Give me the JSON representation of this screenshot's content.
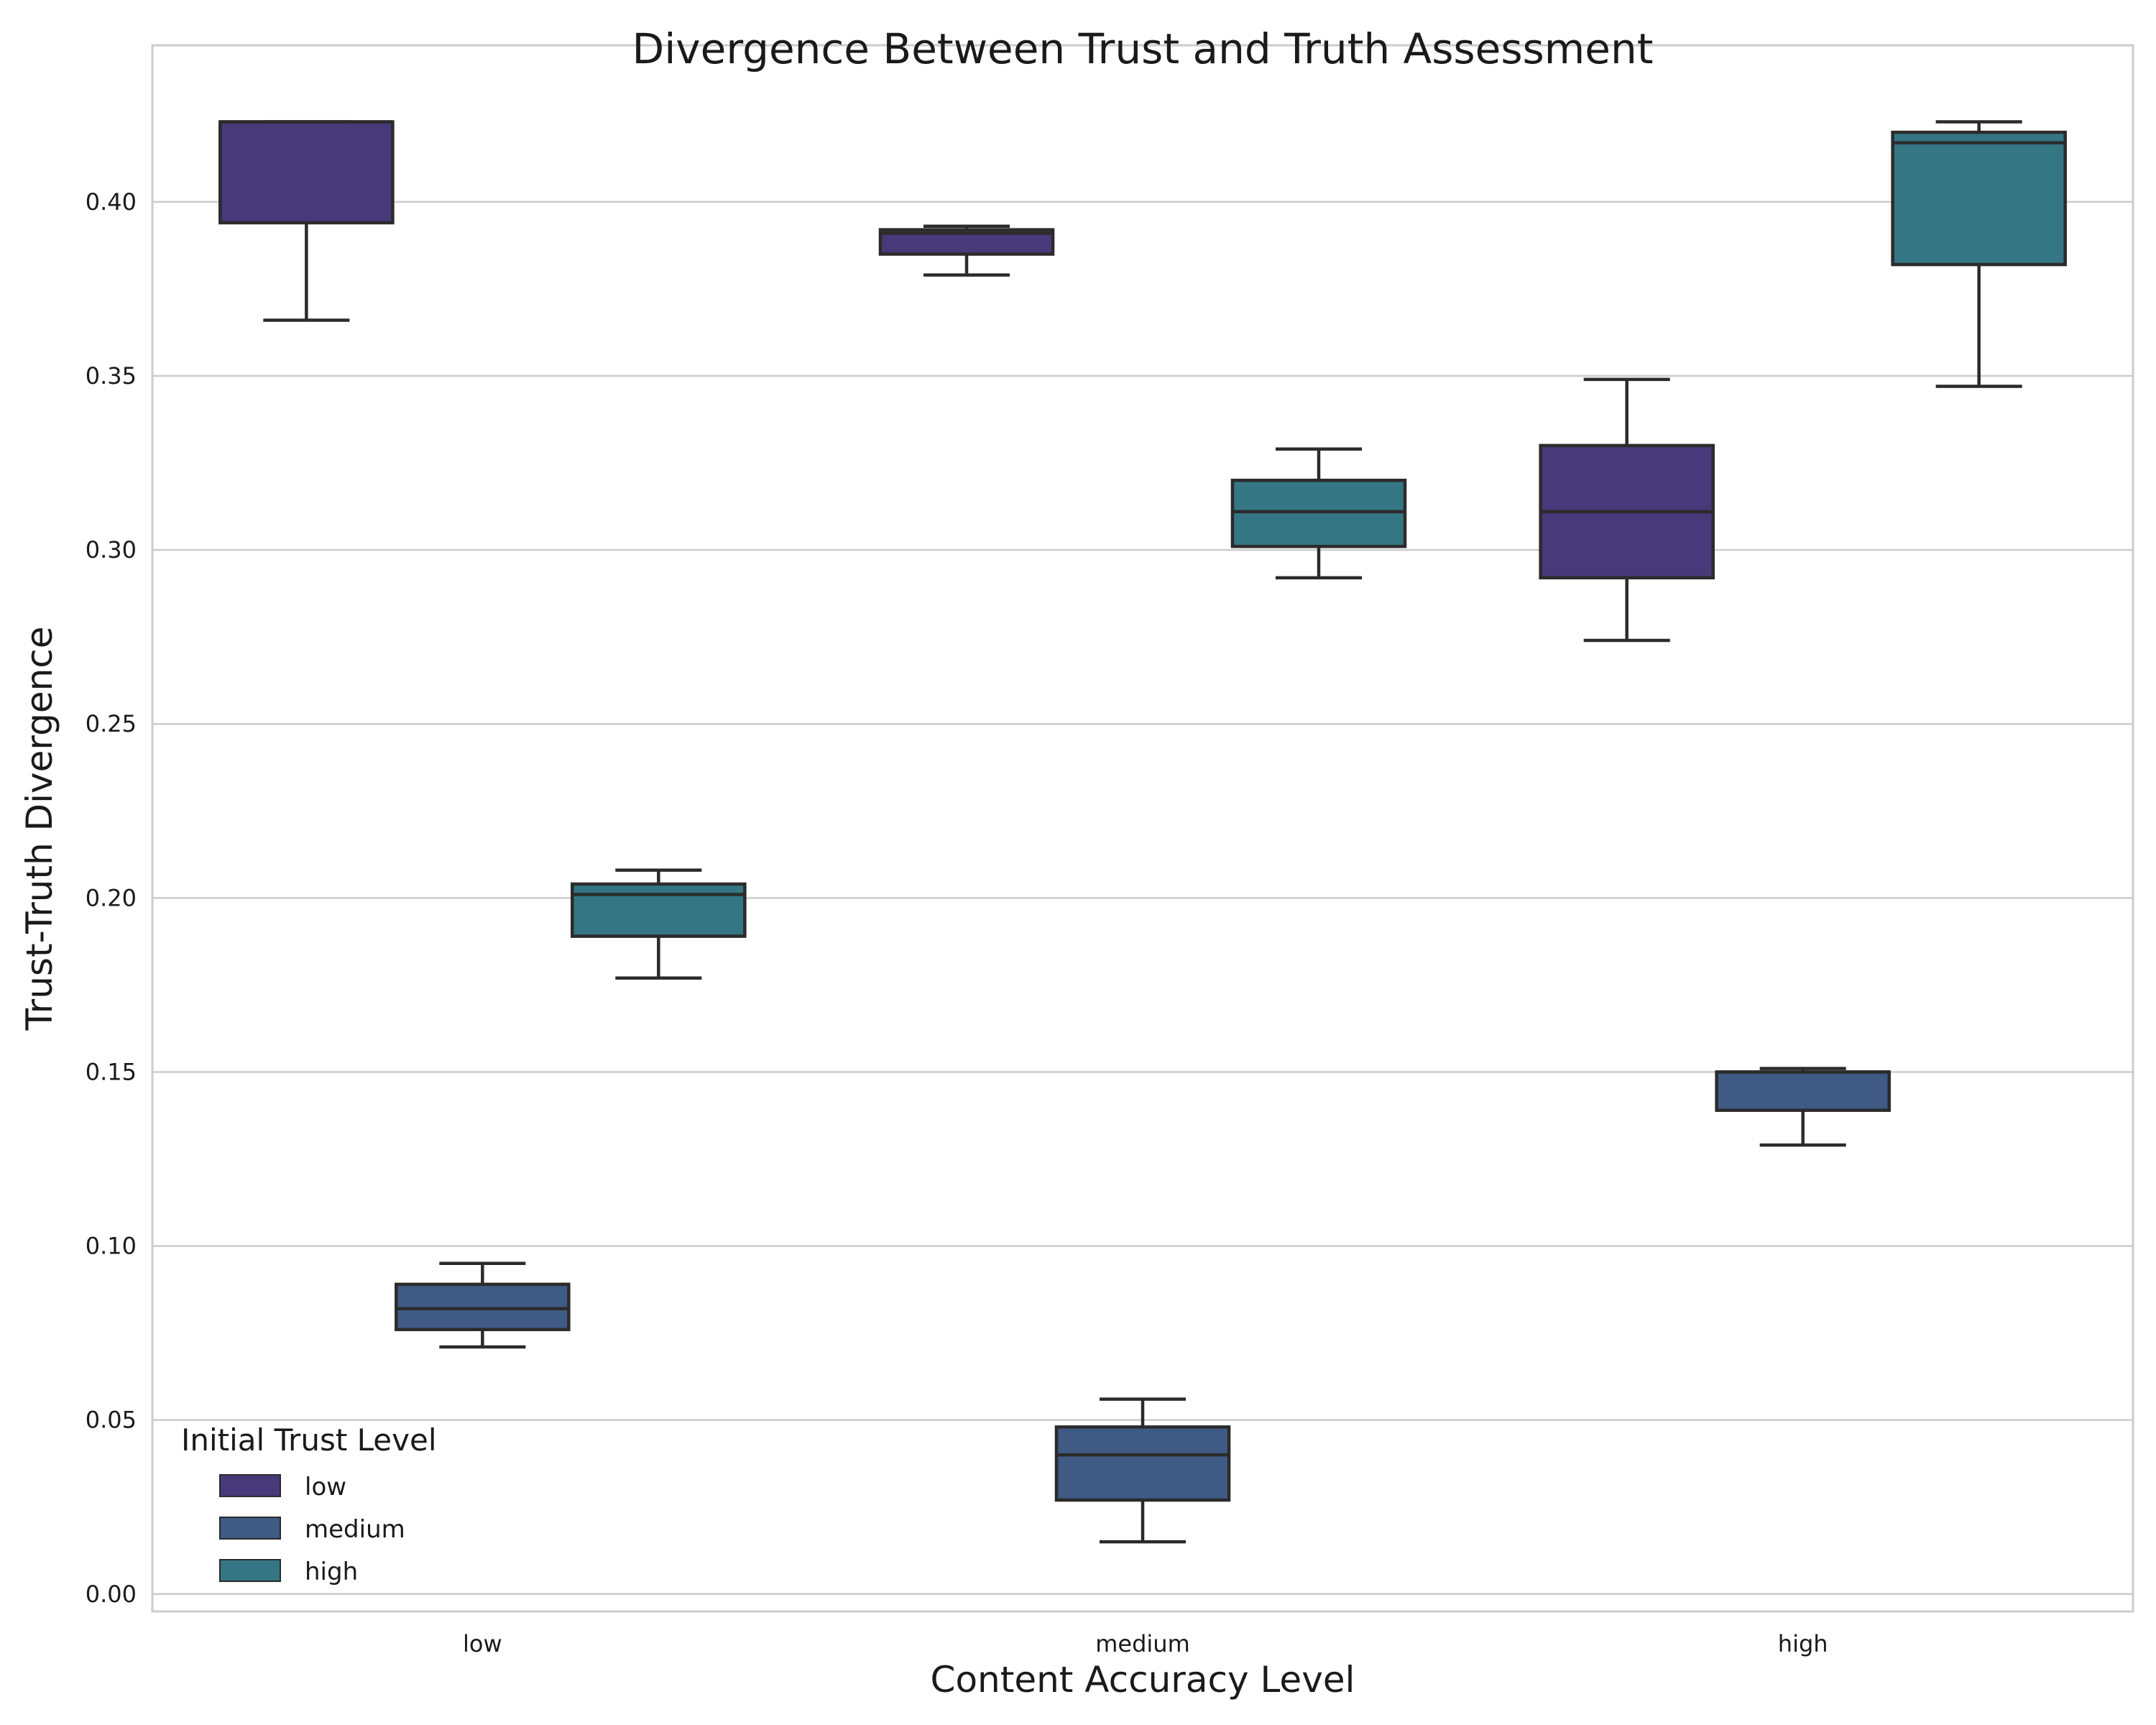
{
  "chart_data": {
    "type": "box",
    "title": "Divergence Between Trust and Truth Assessment",
    "xlabel": "Content Accuracy Level",
    "ylabel": "Trust-Truth Divergence",
    "categories": [
      "low",
      "medium",
      "high"
    ],
    "ylim": [
      -0.005,
      0.445
    ],
    "yticks": [
      "0.00",
      "0.05",
      "0.10",
      "0.15",
      "0.20",
      "0.25",
      "0.30",
      "0.35",
      "0.40"
    ],
    "grid": true,
    "legend": {
      "title": "Initial Trust Level",
      "placement": "lower-left"
    },
    "series": [
      {
        "name": "low",
        "color": "#48397a",
        "boxes": [
          {
            "category": "low",
            "whisker_low": 0.366,
            "q1": 0.394,
            "median": 0.423,
            "q3": 0.423,
            "whisker_high": 0.423
          },
          {
            "category": "medium",
            "whisker_low": 0.379,
            "q1": 0.385,
            "median": 0.391,
            "q3": 0.392,
            "whisker_high": 0.393
          },
          {
            "category": "high",
            "whisker_low": 0.274,
            "q1": 0.292,
            "median": 0.311,
            "q3": 0.33,
            "whisker_high": 0.349
          }
        ]
      },
      {
        "name": "medium",
        "color": "#3f5a84",
        "boxes": [
          {
            "category": "low",
            "whisker_low": 0.071,
            "q1": 0.076,
            "median": 0.082,
            "q3": 0.089,
            "whisker_high": 0.095
          },
          {
            "category": "medium",
            "whisker_low": 0.015,
            "q1": 0.027,
            "median": 0.04,
            "q3": 0.048,
            "whisker_high": 0.056
          },
          {
            "category": "high",
            "whisker_low": 0.129,
            "q1": 0.139,
            "median": 0.15,
            "q3": 0.15,
            "whisker_high": 0.151
          }
        ]
      },
      {
        "name": "high",
        "color": "#347683",
        "boxes": [
          {
            "category": "low",
            "whisker_low": 0.177,
            "q1": 0.189,
            "median": 0.201,
            "q3": 0.204,
            "whisker_high": 0.208
          },
          {
            "category": "medium",
            "whisker_low": 0.292,
            "q1": 0.301,
            "median": 0.311,
            "q3": 0.32,
            "whisker_high": 0.329
          },
          {
            "category": "high",
            "whisker_low": 0.347,
            "q1": 0.382,
            "median": 0.417,
            "q3": 0.42,
            "whisker_high": 0.423
          }
        ]
      }
    ]
  }
}
